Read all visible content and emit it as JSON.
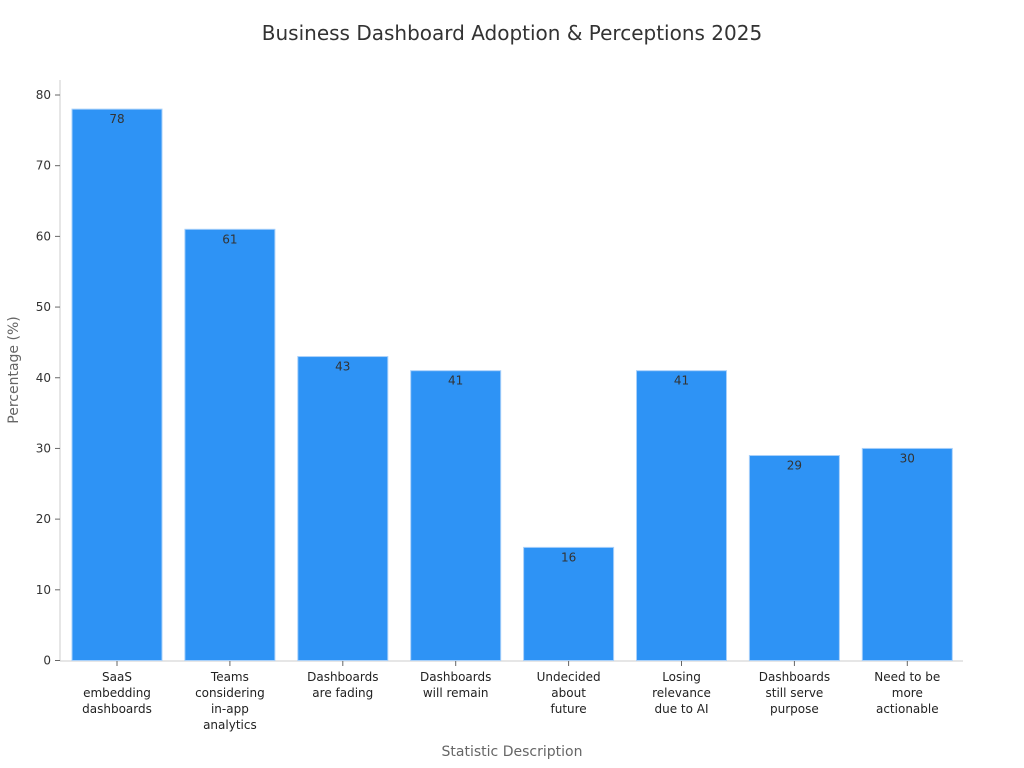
{
  "chart_data": {
    "type": "bar",
    "title": "Business Dashboard Adoption & Perceptions 2025",
    "xlabel": "Statistic Description",
    "ylabel": "Percentage (%)",
    "ylim": [
      0,
      82
    ],
    "yticks": [
      0,
      10,
      20,
      30,
      40,
      50,
      60,
      70,
      80
    ],
    "grid": false,
    "bar_color": "#2e93f5",
    "categories": [
      [
        "SaaS",
        "embedding",
        "dashboards"
      ],
      [
        "Teams",
        "considering",
        "in-app",
        "analytics"
      ],
      [
        "Dashboards",
        "are fading"
      ],
      [
        "Dashboards",
        "will remain"
      ],
      [
        "Undecided",
        "about",
        "future"
      ],
      [
        "Losing",
        "relevance",
        "due to AI"
      ],
      [
        "Dashboards",
        "still serve",
        "purpose"
      ],
      [
        "Need to be",
        "more",
        "actionable"
      ]
    ],
    "values": [
      78,
      61,
      43,
      41,
      16,
      41,
      29,
      30
    ]
  }
}
